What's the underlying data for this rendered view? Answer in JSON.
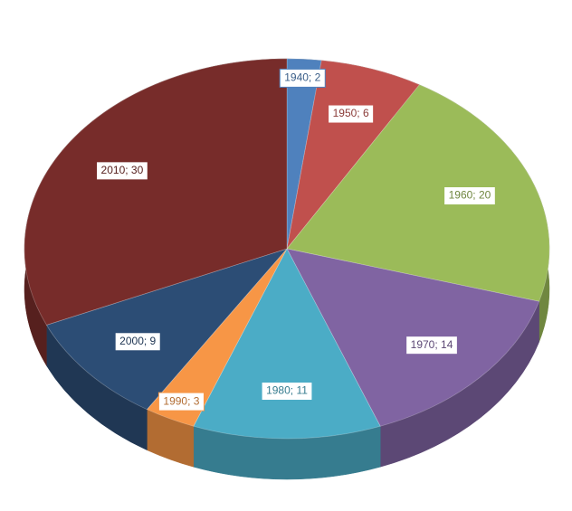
{
  "chart_data": {
    "type": "pie3d",
    "categories": [
      "1940",
      "1950",
      "1960",
      "1970",
      "1980",
      "1990",
      "2000",
      "2010"
    ],
    "values": [
      2,
      6,
      20,
      14,
      11,
      3,
      9,
      30
    ],
    "value_labels": [
      "1940; 2",
      "1950; 6",
      "1960; 20",
      "1970; 14",
      "1980; 11",
      "1990; 3",
      "2000; 9",
      "2010; 30"
    ],
    "colors": [
      "#4f81bd",
      "#c0504d",
      "#9bbb59",
      "#8064a2",
      "#4bacc6",
      "#f79646",
      "#2c4d75",
      "#772c2a"
    ]
  }
}
